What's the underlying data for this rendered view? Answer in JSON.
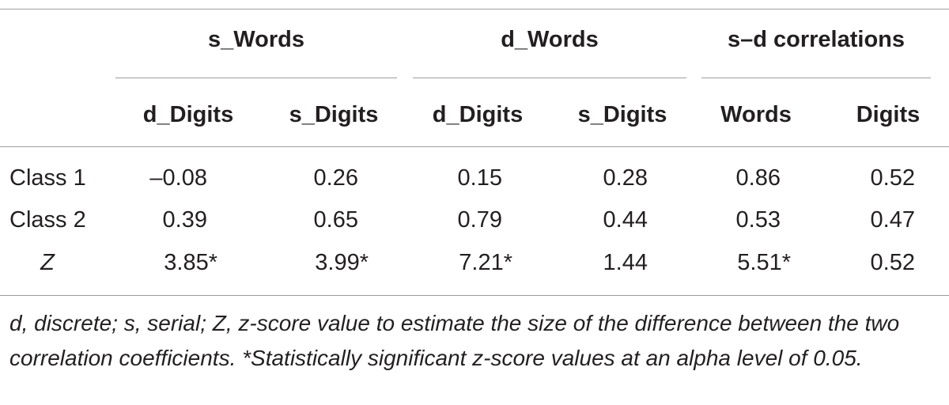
{
  "table": {
    "group_headers": [
      "s_Words",
      "d_Words",
      "s–d correlations"
    ],
    "sub_headers": [
      "d_Digits",
      "s_Digits",
      "d_Digits",
      "s_Digits",
      "Words",
      "Digits"
    ],
    "rows": [
      {
        "label": "Class 1",
        "values": [
          "–0.08",
          "0.26",
          "0.15",
          "0.28",
          "0.86",
          "0.52"
        ]
      },
      {
        "label": "Class 2",
        "values": [
          "0.39",
          "0.65",
          "0.79",
          "0.44",
          "0.53",
          "0.47"
        ]
      },
      {
        "label": "Z",
        "values": [
          "3.85*",
          "3.99*",
          "7.21*",
          "1.44",
          "5.51*",
          "0.52"
        ]
      }
    ]
  },
  "footnote": "d, discrete; s, serial; Z, z-score value to estimate the size of the difference between the two correlation coefficients. *Statistically significant z-score values at an alpha level of 0.05."
}
